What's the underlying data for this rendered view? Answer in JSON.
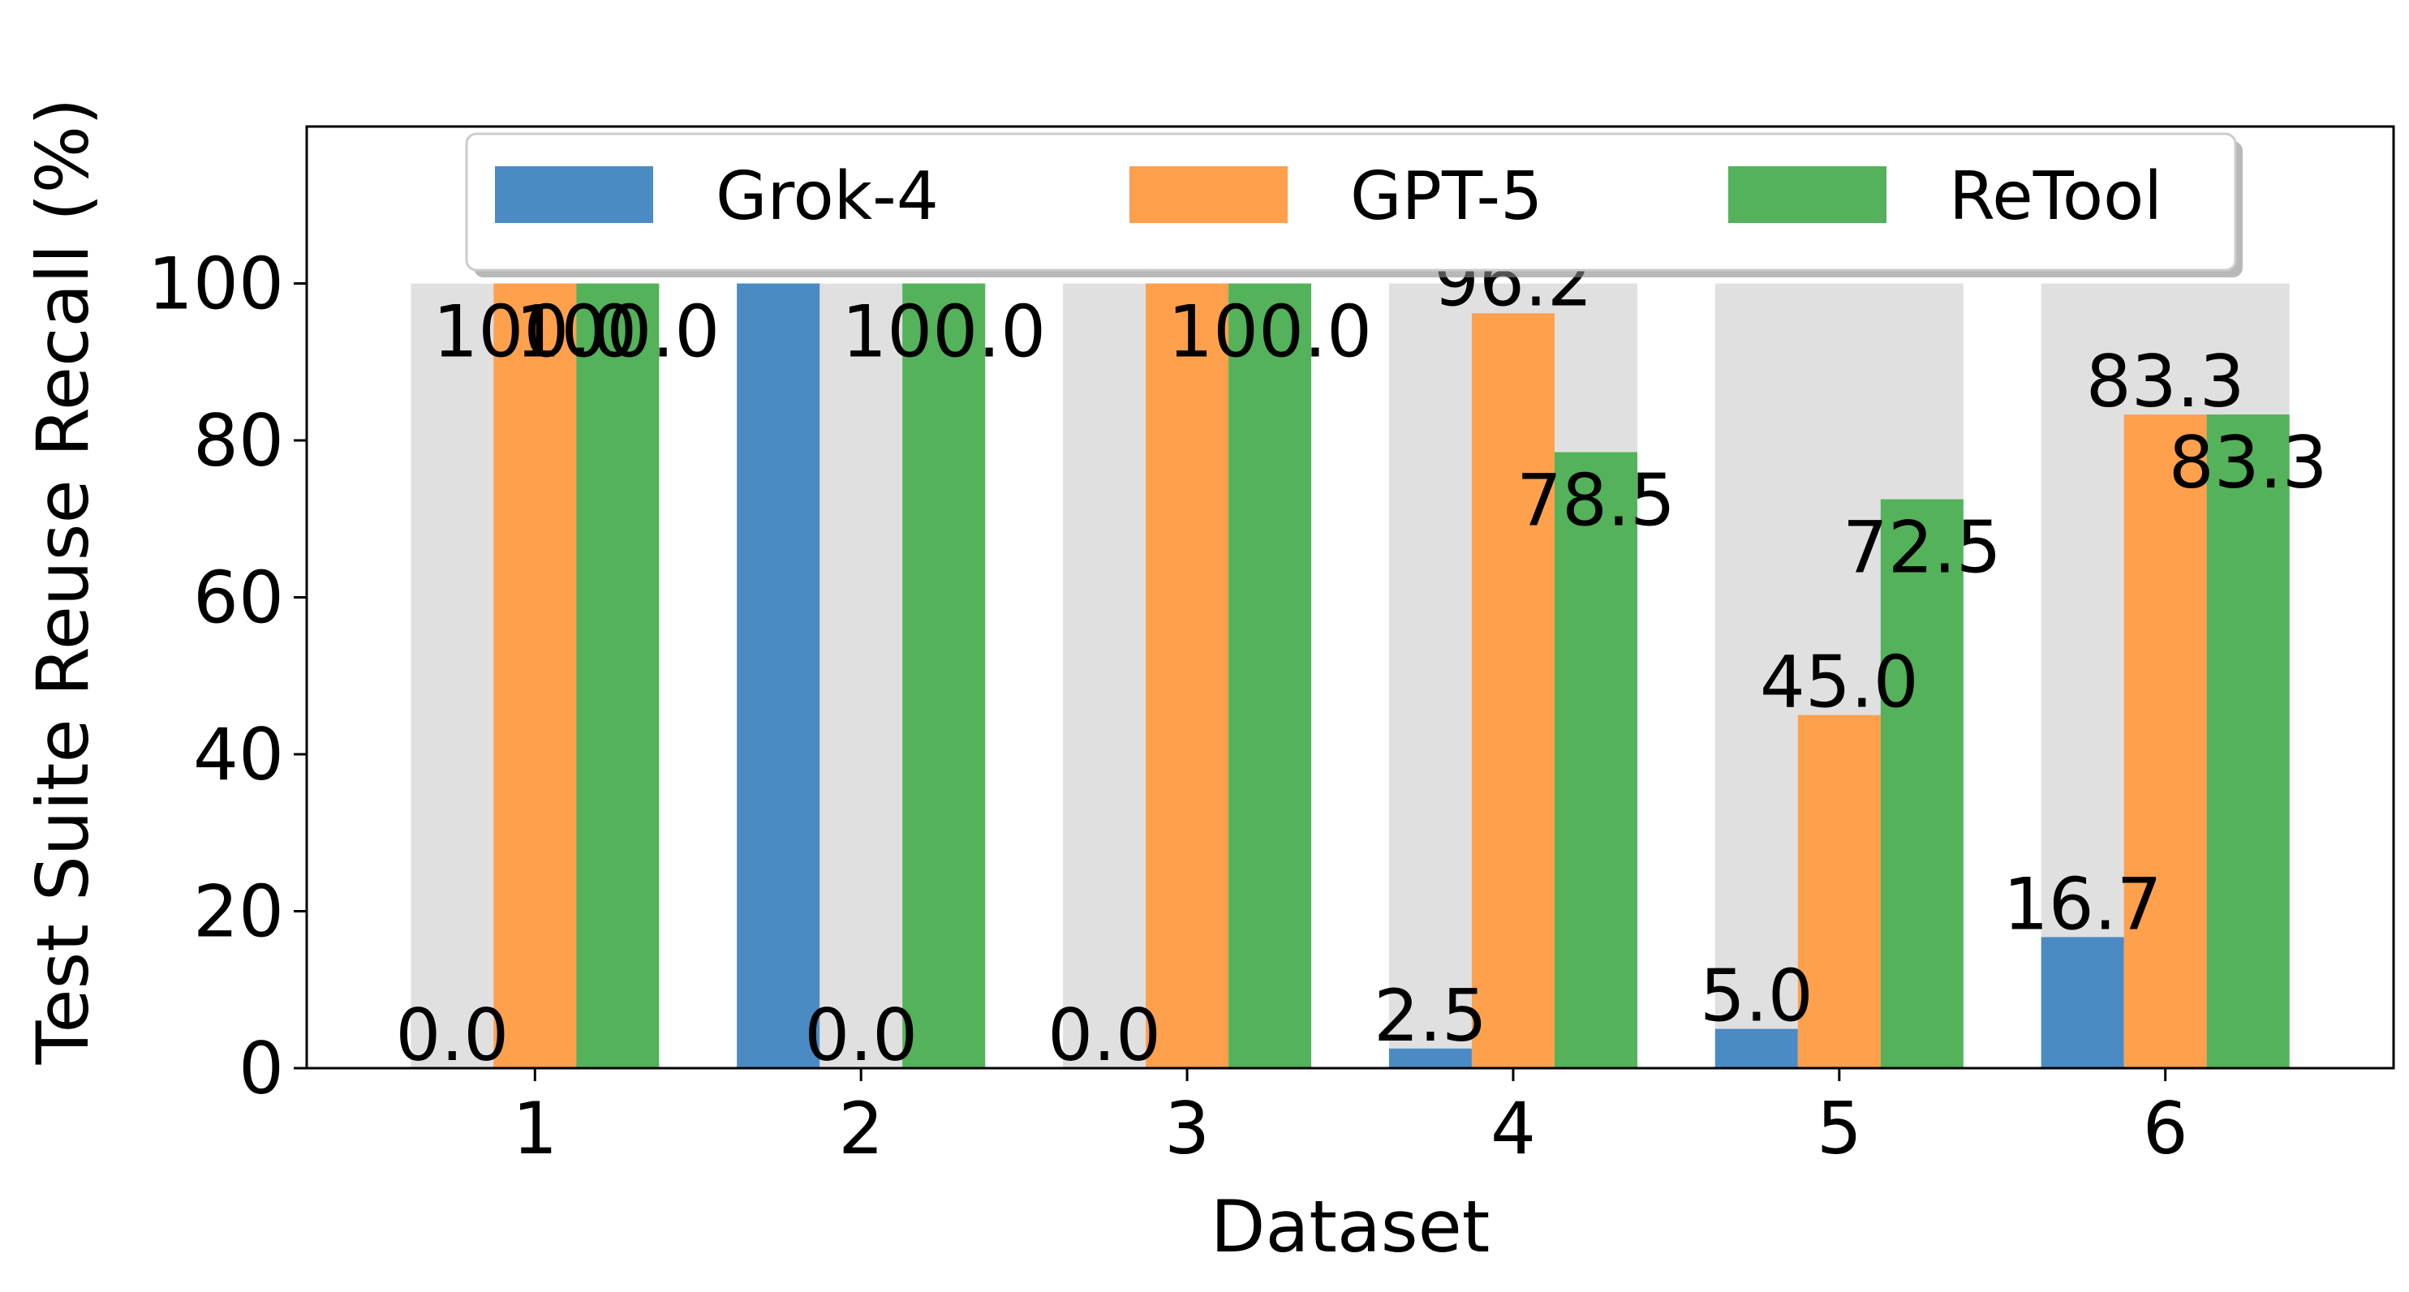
{
  "chart_data": {
    "type": "bar",
    "xlabel": "Dataset",
    "ylabel": "Test Suite Reuse Recall (%)",
    "categories": [
      "1",
      "2",
      "3",
      "4",
      "5",
      "6"
    ],
    "ylim": [
      0,
      120
    ],
    "yticks": [
      0,
      20,
      40,
      60,
      80,
      100
    ],
    "legend_position": "top",
    "background_bar_value": 100,
    "series": [
      {
        "name": "Grok-4",
        "color": "#4a8bc4",
        "values": [
          0.0,
          100.0,
          0.0,
          2.5,
          5.0,
          16.7
        ],
        "labels": [
          "0.0",
          "",
          "0.0",
          "2.5",
          "5.0",
          "16.7"
        ]
      },
      {
        "name": "GPT-5",
        "color": "#ffa04d",
        "values": [
          100.0,
          0.0,
          100.0,
          96.2,
          45.0,
          83.3
        ],
        "labels": [
          "100.0",
          "0.0",
          "",
          "96.2",
          "45.0",
          "83.3"
        ]
      },
      {
        "name": "ReTool",
        "color": "#53b25a",
        "values": [
          100.0,
          100.0,
          100.0,
          78.5,
          72.5,
          83.3
        ],
        "labels": [
          "100.0",
          "100.0",
          "100.0",
          "78.5",
          "72.5",
          "83.3"
        ]
      }
    ]
  }
}
